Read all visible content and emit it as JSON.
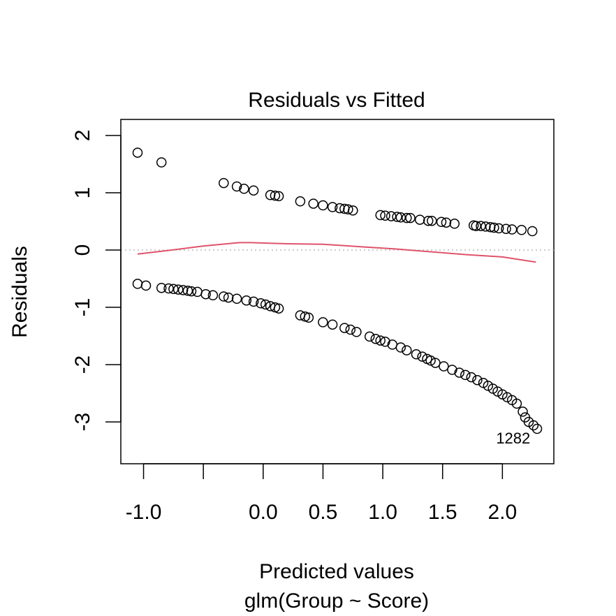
{
  "chart_data": {
    "type": "scatter",
    "title": "Residuals vs Fitted",
    "xlabel": "Predicted values",
    "subtitle": "glm(Group ~ Score)",
    "ylabel": "Residuals",
    "xlim": [
      -1.19,
      2.43
    ],
    "ylim": [
      -3.73,
      2.28
    ],
    "x_ticks": [
      -1.0,
      -0.5,
      0.0,
      0.5,
      1.0,
      1.5,
      2.0
    ],
    "x_tick_labels": [
      "-1.0",
      "",
      "0.0",
      "0.5",
      "1.0",
      "1.5",
      "2.0"
    ],
    "y_ticks": [
      2,
      1,
      0,
      -1,
      -2,
      -3
    ],
    "y_tick_labels": [
      "2",
      "1",
      "0",
      "-1",
      "-2",
      "-3"
    ],
    "reference_line": {
      "y": 0,
      "style": "dotted",
      "color": "#bbbbbb"
    },
    "smooth_color": "#df536b",
    "point_color": "#000000",
    "points_upper": [
      [
        -1.05,
        1.7
      ],
      [
        -0.85,
        1.53
      ],
      [
        -0.33,
        1.17
      ],
      [
        -0.22,
        1.11
      ],
      [
        -0.16,
        1.07
      ],
      [
        -0.08,
        1.04
      ],
      [
        0.06,
        0.96
      ],
      [
        0.1,
        0.95
      ],
      [
        0.13,
        0.94
      ],
      [
        0.31,
        0.85
      ],
      [
        0.42,
        0.81
      ],
      [
        0.5,
        0.78
      ],
      [
        0.58,
        0.75
      ],
      [
        0.64,
        0.73
      ],
      [
        0.68,
        0.72
      ],
      [
        0.71,
        0.71
      ],
      [
        0.75,
        0.69
      ],
      [
        0.98,
        0.61
      ],
      [
        1.02,
        0.6
      ],
      [
        1.07,
        0.59
      ],
      [
        1.12,
        0.58
      ],
      [
        1.15,
        0.57
      ],
      [
        1.2,
        0.56
      ],
      [
        1.23,
        0.56
      ],
      [
        1.31,
        0.53
      ],
      [
        1.38,
        0.51
      ],
      [
        1.41,
        0.51
      ],
      [
        1.49,
        0.49
      ],
      [
        1.53,
        0.48
      ],
      [
        1.6,
        0.46
      ],
      [
        1.76,
        0.43
      ],
      [
        1.78,
        0.42
      ],
      [
        1.82,
        0.42
      ],
      [
        1.86,
        0.41
      ],
      [
        1.9,
        0.4
      ],
      [
        1.93,
        0.39
      ],
      [
        1.97,
        0.38
      ],
      [
        2.03,
        0.37
      ],
      [
        2.08,
        0.36
      ],
      [
        2.16,
        0.35
      ],
      [
        2.25,
        0.33
      ]
    ],
    "points_lower": [
      [
        -1.05,
        -0.59
      ],
      [
        -0.98,
        -0.62
      ],
      [
        -0.85,
        -0.66
      ],
      [
        -0.79,
        -0.67
      ],
      [
        -0.75,
        -0.68
      ],
      [
        -0.71,
        -0.69
      ],
      [
        -0.67,
        -0.7
      ],
      [
        -0.63,
        -0.71
      ],
      [
        -0.6,
        -0.72
      ],
      [
        -0.55,
        -0.73
      ],
      [
        -0.48,
        -0.77
      ],
      [
        -0.42,
        -0.79
      ],
      [
        -0.33,
        -0.81
      ],
      [
        -0.29,
        -0.83
      ],
      [
        -0.22,
        -0.85
      ],
      [
        -0.14,
        -0.88
      ],
      [
        -0.08,
        -0.9
      ],
      [
        -0.02,
        -0.93
      ],
      [
        0.02,
        -0.95
      ],
      [
        0.06,
        -0.98
      ],
      [
        0.1,
        -1.0
      ],
      [
        0.13,
        -1.02
      ],
      [
        0.31,
        -1.14
      ],
      [
        0.35,
        -1.16
      ],
      [
        0.38,
        -1.18
      ],
      [
        0.5,
        -1.26
      ],
      [
        0.58,
        -1.3
      ],
      [
        0.68,
        -1.36
      ],
      [
        0.73,
        -1.39
      ],
      [
        0.78,
        -1.43
      ],
      [
        0.89,
        -1.51
      ],
      [
        0.94,
        -1.55
      ],
      [
        0.98,
        -1.58
      ],
      [
        1.02,
        -1.6
      ],
      [
        1.08,
        -1.65
      ],
      [
        1.15,
        -1.7
      ],
      [
        1.2,
        -1.75
      ],
      [
        1.28,
        -1.82
      ],
      [
        1.33,
        -1.86
      ],
      [
        1.37,
        -1.9
      ],
      [
        1.4,
        -1.93
      ],
      [
        1.44,
        -1.97
      ],
      [
        1.51,
        -2.03
      ],
      [
        1.58,
        -2.09
      ],
      [
        1.64,
        -2.14
      ],
      [
        1.69,
        -2.18
      ],
      [
        1.74,
        -2.22
      ],
      [
        1.79,
        -2.27
      ],
      [
        1.84,
        -2.32
      ],
      [
        1.88,
        -2.37
      ],
      [
        1.92,
        -2.42
      ],
      [
        1.96,
        -2.47
      ],
      [
        2.0,
        -2.52
      ],
      [
        2.04,
        -2.57
      ],
      [
        2.08,
        -2.62
      ],
      [
        2.12,
        -2.68
      ],
      [
        2.17,
        -2.82
      ],
      [
        2.19,
        -2.92
      ],
      [
        2.22,
        -3.0
      ],
      [
        2.26,
        -3.06
      ],
      [
        2.29,
        -3.12
      ]
    ],
    "smooth_line": [
      [
        -1.05,
        -0.07
      ],
      [
        -0.8,
        -0.01
      ],
      [
        -0.5,
        0.07
      ],
      [
        -0.2,
        0.13
      ],
      [
        -0.1,
        0.13
      ],
      [
        0.2,
        0.11
      ],
      [
        0.5,
        0.1
      ],
      [
        0.8,
        0.06
      ],
      [
        1.1,
        0.02
      ],
      [
        1.4,
        -0.03
      ],
      [
        1.7,
        -0.08
      ],
      [
        2.0,
        -0.12
      ],
      [
        2.28,
        -0.21
      ]
    ],
    "annotations": [
      {
        "text": "1282",
        "x": 2.09,
        "y": -3.28
      }
    ]
  }
}
